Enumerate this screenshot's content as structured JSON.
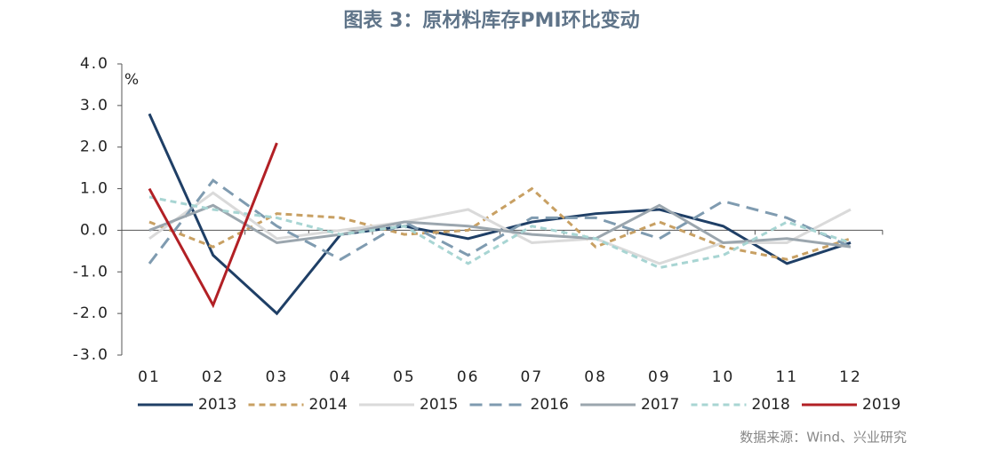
{
  "chart_data": {
    "type": "line",
    "title": "图表 3：原材料库存PMI环比变动",
    "y_unit": "%",
    "source": "数据来源：Wind、兴业研究",
    "categories": [
      "01",
      "02",
      "03",
      "04",
      "05",
      "06",
      "07",
      "08",
      "09",
      "10",
      "11",
      "12"
    ],
    "ylim": [
      -3,
      4
    ],
    "yticks": [
      {
        "value": -3,
        "label": "-3.0"
      },
      {
        "value": -2,
        "label": "-2.0"
      },
      {
        "value": -1,
        "label": "-1.0"
      },
      {
        "value": 0,
        "label": "0.0"
      },
      {
        "value": 1,
        "label": "1.0"
      },
      {
        "value": 2,
        "label": "2.0"
      },
      {
        "value": 3,
        "label": "3.0"
      },
      {
        "value": 4,
        "label": "4.0"
      }
    ],
    "legend": "bottom",
    "series": [
      {
        "name": "2013",
        "color": "#1f3f66",
        "style": "solid",
        "values": [
          2.8,
          -0.6,
          -2.0,
          -0.1,
          0.1,
          -0.2,
          0.2,
          0.4,
          0.5,
          0.1,
          -0.8,
          -0.3
        ]
      },
      {
        "name": "2014",
        "color": "#c8a063",
        "style": "dashed",
        "values": [
          0.2,
          -0.4,
          0.4,
          0.3,
          -0.1,
          0.0,
          1.0,
          -0.4,
          0.2,
          -0.4,
          -0.7,
          -0.2
        ]
      },
      {
        "name": "2015",
        "color": "#dadada",
        "style": "solid",
        "values": [
          -0.2,
          0.9,
          -0.2,
          0.0,
          0.2,
          0.5,
          -0.3,
          -0.2,
          -0.8,
          -0.3,
          -0.3,
          0.5
        ]
      },
      {
        "name": "2016",
        "color": "#7f9bb0",
        "style": "longdash",
        "values": [
          -0.8,
          1.2,
          0.1,
          -0.7,
          0.2,
          -0.6,
          0.3,
          0.3,
          -0.2,
          0.7,
          0.3,
          -0.4
        ]
      },
      {
        "name": "2017",
        "color": "#9ba6ae",
        "style": "solid",
        "values": [
          0.0,
          0.6,
          -0.3,
          -0.1,
          0.2,
          0.1,
          -0.1,
          -0.2,
          0.6,
          -0.3,
          -0.2,
          -0.4
        ]
      },
      {
        "name": "2018",
        "color": "#a8d5d3",
        "style": "dashed",
        "values": [
          0.8,
          0.5,
          0.3,
          -0.1,
          0.1,
          -0.8,
          0.1,
          -0.2,
          -0.9,
          -0.6,
          0.2,
          -0.3
        ]
      },
      {
        "name": "2019",
        "color": "#b22025",
        "style": "solid",
        "values": [
          1.0,
          -1.8,
          2.1,
          null,
          null,
          null,
          null,
          null,
          null,
          null,
          null,
          null
        ]
      }
    ]
  }
}
